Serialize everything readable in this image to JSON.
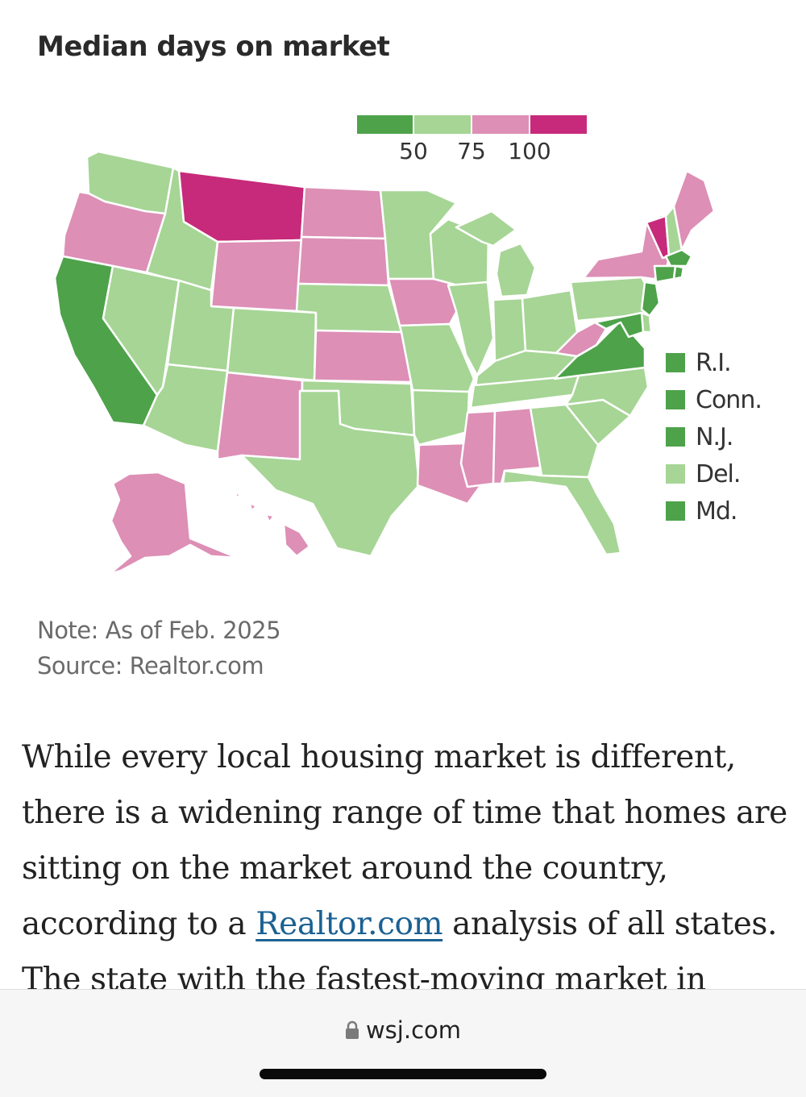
{
  "chart_title": "Median days on market",
  "colors": {
    "fast": "#4ea24a",
    "medium": "#a6d595",
    "slow": "#dd8fb6",
    "slowest": "#c72a7a"
  },
  "chart_data": {
    "type": "choropleth-map",
    "title": "Median days on market",
    "legend": {
      "type": "binned",
      "breaks": [
        50,
        75,
        100
      ],
      "colors": [
        "#4ea24a",
        "#a6d595",
        "#dd8fb6",
        "#c72a7a"
      ],
      "position": "top-right"
    },
    "bins": {
      "under_50": [
        "California",
        "Virginia",
        "Rhode Island",
        "Connecticut",
        "New Jersey",
        "Maryland",
        "Massachusetts"
      ],
      "50_75": [
        "Washington",
        "Idaho",
        "Nevada",
        "Utah",
        "Arizona",
        "Colorado",
        "Nebraska",
        "Minnesota",
        "Wisconsin",
        "Michigan",
        "Illinois",
        "Indiana",
        "Ohio",
        "Missouri",
        "Oklahoma",
        "Texas",
        "Arkansas",
        "Kentucky",
        "Tennessee",
        "Georgia",
        "Florida",
        "South Carolina",
        "North Carolina",
        "Pennsylvania",
        "New Hampshire",
        "Delaware"
      ],
      "75_100": [
        "Oregon",
        "Wyoming",
        "North Dakota",
        "South Dakota",
        "Iowa",
        "Kansas",
        "New Mexico",
        "Louisiana",
        "Mississippi",
        "Alabama",
        "West Virginia",
        "New York",
        "Maine",
        "Alaska",
        "Hawaii"
      ],
      "over_100": [
        "Montana",
        "Vermont"
      ]
    },
    "small_states_legend": [
      {
        "label": "R.I.",
        "bin": "under_50"
      },
      {
        "label": "Conn.",
        "bin": "under_50"
      },
      {
        "label": "N.J.",
        "bin": "under_50"
      },
      {
        "label": "Del.",
        "bin": "50_75"
      },
      {
        "label": "Md.",
        "bin": "under_50"
      }
    ]
  },
  "notes": {
    "note": "Note: As of Feb. 2025",
    "source": "Source: Realtor.com"
  },
  "article": {
    "line1": "While every local housing market is different,",
    "line2": "there is a widening range of time that homes are",
    "line3": "sitting on the market around the country,",
    "line4_before": "according to a ",
    "line4_link": "Realtor.com",
    "line4_after": " analysis of all states.",
    "line5": "The state with the fastest-moving market in"
  },
  "browser": {
    "url": "wsj.com",
    "lock_icon": "lock-icon"
  }
}
